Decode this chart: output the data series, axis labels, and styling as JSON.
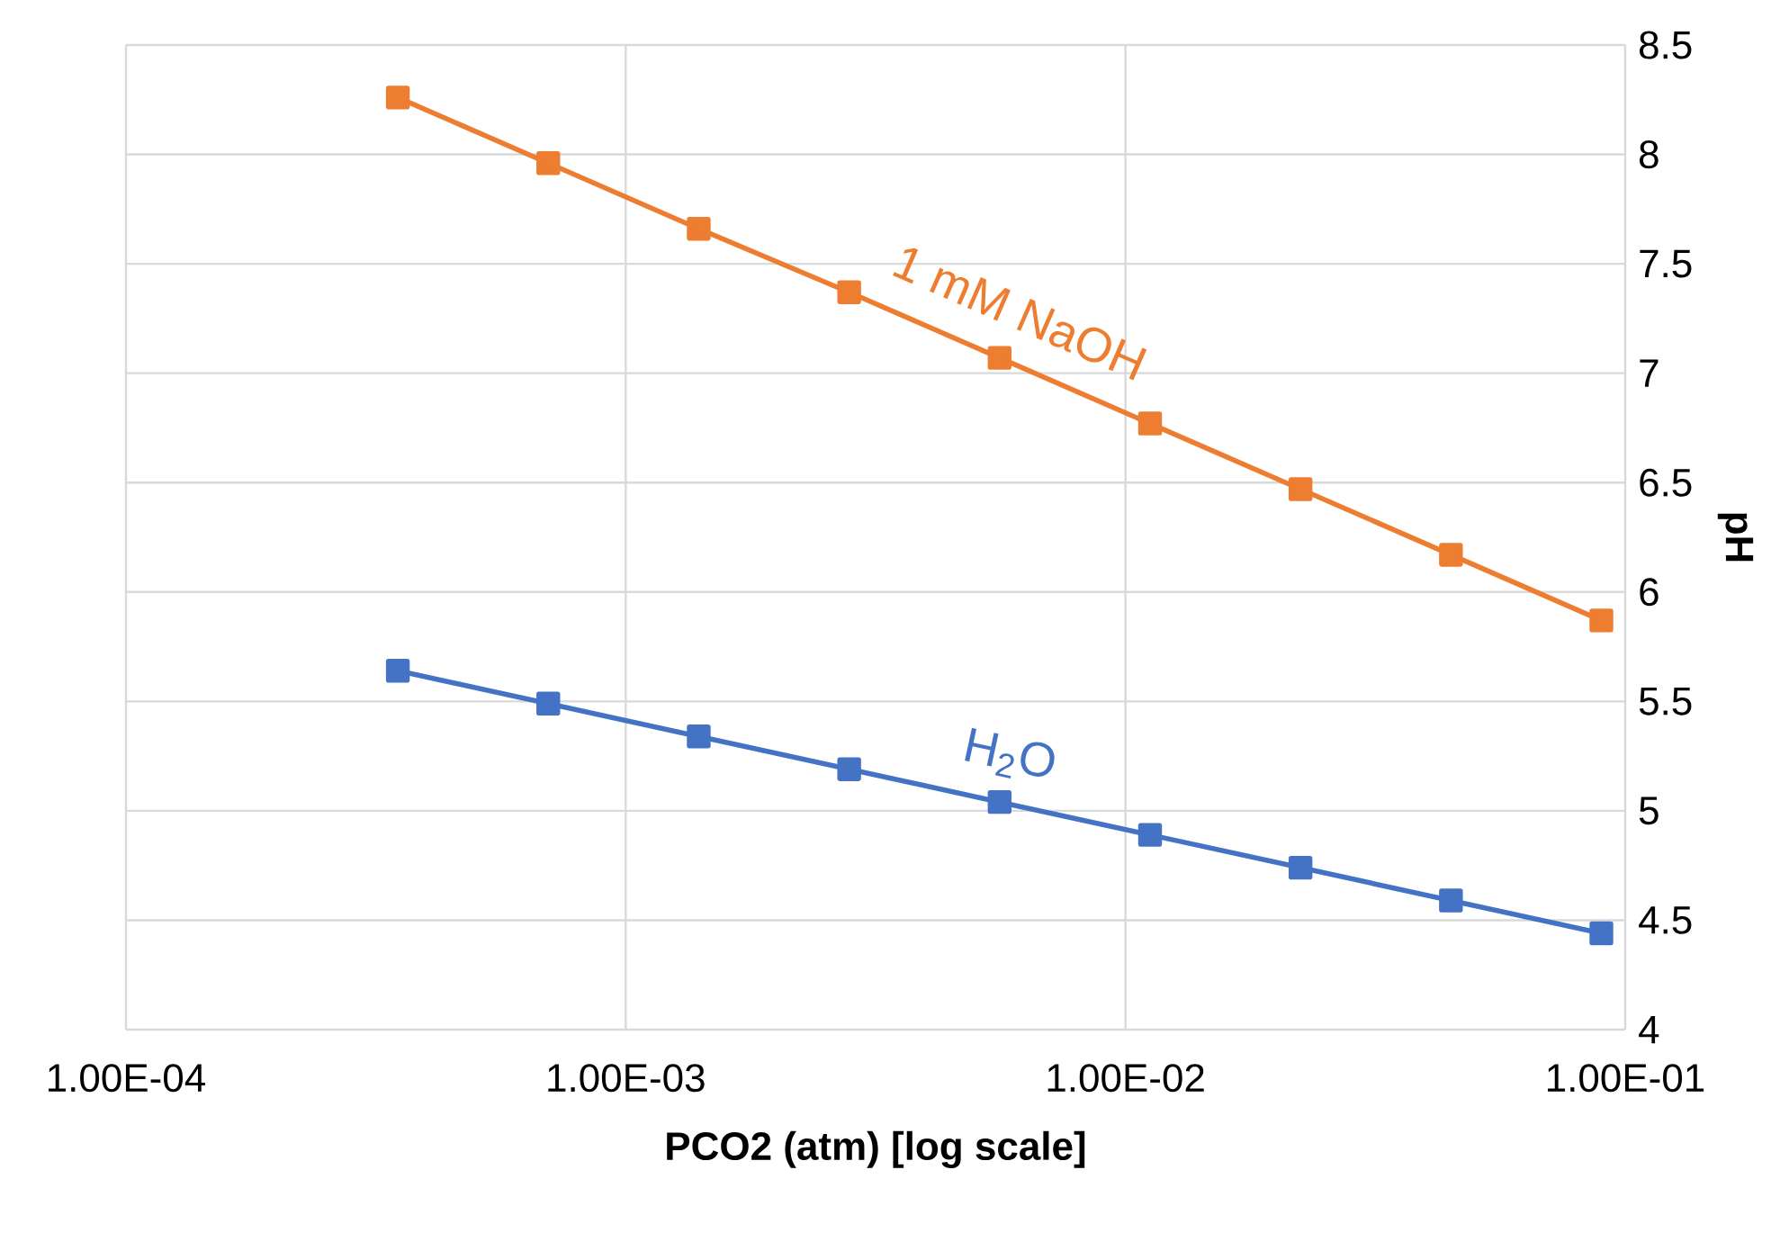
{
  "chart_data": {
    "type": "line",
    "xlabel": "PCO2 (atm) [log scale]",
    "ylabel": "pH",
    "log": "x",
    "grid": true,
    "marker": "square",
    "line_style": "solid",
    "xlim": [
      0.0001,
      0.1
    ],
    "xticks": [
      {
        "value": 0.0001,
        "label": "1.00E-04"
      },
      {
        "value": 0.001,
        "label": "1.00E-03"
      },
      {
        "value": 0.01,
        "label": "1.00E-02"
      },
      {
        "value": 0.1,
        "label": "1.00E-01"
      }
    ],
    "ylim": [
      4,
      8.5
    ],
    "yticks": [
      4,
      4.5,
      5,
      5.5,
      6,
      6.5,
      7,
      7.5,
      8,
      8.5
    ],
    "series": [
      {
        "name": "1 mM NaOH",
        "color": "#ed7d31",
        "x": [
          0.00035,
          0.0007,
          0.0014,
          0.0028,
          0.0056,
          0.0112,
          0.0224,
          0.0448,
          0.0896
        ],
        "values": [
          8.26,
          7.96,
          7.66,
          7.37,
          7.07,
          6.77,
          6.47,
          6.17,
          5.87
        ]
      },
      {
        "name": "H$_{2}$O",
        "color": "#4472c4",
        "x": [
          0.00035,
          0.0007,
          0.0014,
          0.0028,
          0.0056,
          0.0112,
          0.0224,
          0.0448,
          0.0896
        ],
        "values": [
          5.64,
          5.49,
          5.34,
          5.19,
          5.04,
          4.89,
          4.74,
          4.59,
          4.44
        ]
      }
    ]
  }
}
